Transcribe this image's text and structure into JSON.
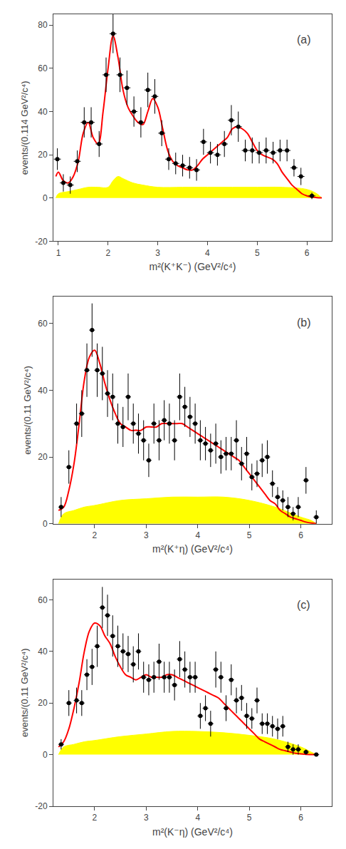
{
  "chart_data": [
    {
      "type": "line",
      "annotations": [
        "(a)"
      ],
      "xlabel": "m²(K⁺K⁻) (GeV²/c⁴)",
      "ylabel": "events/(0.114 GeV²/c⁴)",
      "xlim": [
        0.9,
        6.5
      ],
      "ylim": [
        -20,
        85
      ],
      "yticks": [
        -20,
        0,
        20,
        40,
        60,
        80
      ],
      "xticks": [
        1,
        2,
        3,
        4,
        5,
        6
      ],
      "grid": false,
      "series": [
        {
          "type": "area",
          "color": "#ffff00",
          "line_style": "solid",
          "x": [
            0.95,
            1.0,
            1.2,
            1.4,
            1.6,
            1.8,
            2.0,
            2.1,
            2.2,
            2.3,
            2.5,
            2.7,
            3.0,
            3.5,
            4.0,
            4.5,
            5.0,
            5.5,
            6.0,
            6.2,
            6.3
          ],
          "values": [
            0,
            2,
            3,
            4,
            5,
            5,
            5,
            8,
            10,
            9,
            7,
            6,
            5,
            5,
            5,
            5,
            5,
            5,
            4,
            2,
            0
          ]
        },
        {
          "type": "line",
          "color": "#ff0000",
          "line_style": "solid",
          "x": [
            0.95,
            1.0,
            1.1,
            1.2,
            1.3,
            1.4,
            1.5,
            1.6,
            1.7,
            1.8,
            1.9,
            2.0,
            2.1,
            2.2,
            2.3,
            2.4,
            2.5,
            2.6,
            2.7,
            2.8,
            2.9,
            3.0,
            3.1,
            3.2,
            3.3,
            3.4,
            3.5,
            3.6,
            3.7,
            3.8,
            3.9,
            4.0,
            4.1,
            4.2,
            4.3,
            4.4,
            4.5,
            4.6,
            4.7,
            4.8,
            4.9,
            5.0,
            5.1,
            5.2,
            5.3,
            5.4,
            5.5,
            5.6,
            5.7,
            5.8,
            5.9,
            6.0,
            6.1,
            6.2,
            6.3
          ],
          "values": [
            10,
            12,
            8,
            7,
            10,
            17,
            30,
            35,
            28,
            25,
            40,
            60,
            75,
            65,
            50,
            42,
            38,
            35,
            34,
            40,
            46,
            42,
            32,
            22,
            17,
            15,
            14,
            13,
            13,
            15,
            18,
            20,
            22,
            24,
            26,
            28,
            32,
            33,
            32,
            30,
            26,
            22,
            20,
            19,
            18,
            16,
            12,
            9,
            6,
            4,
            2,
            1,
            0.5,
            0.2,
            0.1
          ]
        },
        {
          "type": "scatter",
          "color": "#000000",
          "marker": "circle",
          "x": [
            0.98,
            1.1,
            1.24,
            1.38,
            1.52,
            1.66,
            1.82,
            1.96,
            2.1,
            2.24,
            2.38,
            2.52,
            2.66,
            2.8,
            2.94,
            3.08,
            3.22,
            3.36,
            3.5,
            3.64,
            3.78,
            3.92,
            4.06,
            4.2,
            4.34,
            4.48,
            4.62,
            4.76,
            4.9,
            5.04,
            5.18,
            5.32,
            5.46,
            5.6,
            5.74,
            5.88,
            6.1
          ],
          "values": [
            18,
            7,
            6,
            17,
            35,
            35,
            25,
            57,
            76,
            57,
            51,
            40,
            35,
            50,
            47,
            30,
            18,
            16,
            15,
            14,
            13,
            26,
            21,
            20,
            25,
            36,
            33,
            22,
            22,
            21,
            22,
            21,
            22,
            22,
            14,
            10,
            1
          ],
          "yerr": [
            5,
            4,
            4,
            5,
            7,
            7,
            6,
            8,
            9,
            8,
            8,
            7,
            7,
            8,
            8,
            6,
            5,
            5,
            5,
            5,
            5,
            6,
            5,
            5,
            6,
            7,
            7,
            5,
            6,
            5,
            6,
            5,
            5,
            5,
            4,
            4,
            1.5
          ],
          "xerr": 0.07
        }
      ]
    },
    {
      "type": "line",
      "annotations": [
        "(b)"
      ],
      "xlabel": "m²(K⁺η) (GeV²/c⁴)",
      "ylabel": "events/(0.11 GeV²/c⁴)",
      "xlim": [
        1.2,
        6.6
      ],
      "ylim": [
        0,
        68
      ],
      "yticks": [
        0,
        20,
        40,
        60
      ],
      "xticks": [
        2,
        3,
        4,
        5,
        6
      ],
      "grid": false,
      "series": [
        {
          "type": "area",
          "color": "#ffff00",
          "line_style": "solid",
          "x": [
            1.3,
            1.4,
            1.6,
            1.8,
            2.0,
            2.5,
            3.0,
            3.5,
            4.0,
            4.5,
            5.0,
            5.5,
            6.0,
            6.2,
            6.3
          ],
          "values": [
            0,
            3,
            4,
            5,
            5.5,
            7,
            7.5,
            8,
            8,
            8,
            7,
            5,
            2,
            1,
            0
          ]
        },
        {
          "type": "line",
          "color": "#ff0000",
          "line_style": "solid",
          "x": [
            1.3,
            1.4,
            1.5,
            1.6,
            1.7,
            1.8,
            1.9,
            2.0,
            2.1,
            2.2,
            2.3,
            2.4,
            2.5,
            2.6,
            2.7,
            2.8,
            2.9,
            3.0,
            3.1,
            3.2,
            3.3,
            3.4,
            3.5,
            3.6,
            3.7,
            3.8,
            3.9,
            4.0,
            4.1,
            4.2,
            4.3,
            4.4,
            4.5,
            4.6,
            4.7,
            4.8,
            4.9,
            5.0,
            5.1,
            5.2,
            5.3,
            5.4,
            5.5,
            5.6,
            5.7,
            5.8,
            5.9,
            6.0,
            6.1,
            6.2,
            6.3
          ],
          "values": [
            4,
            5,
            10,
            18,
            30,
            43,
            50,
            52,
            48,
            42,
            37,
            33,
            30,
            29,
            28,
            28,
            28,
            29,
            29,
            29,
            30,
            30,
            30,
            30,
            30,
            29,
            28,
            27,
            26,
            25,
            24,
            23,
            22,
            21,
            20,
            19,
            17,
            15,
            13,
            11,
            9,
            7,
            6,
            4,
            3,
            2,
            1.5,
            1,
            0.5,
            0.2,
            0.05
          ]
        },
        {
          "type": "scatter",
          "color": "#000000",
          "marker": "circle",
          "x": [
            1.35,
            1.5,
            1.65,
            1.75,
            1.85,
            1.95,
            2.05,
            2.15,
            2.25,
            2.35,
            2.45,
            2.55,
            2.65,
            2.75,
            2.85,
            2.95,
            3.05,
            3.15,
            3.25,
            3.35,
            3.45,
            3.55,
            3.65,
            3.75,
            3.85,
            3.95,
            4.05,
            4.15,
            4.25,
            4.35,
            4.45,
            4.55,
            4.65,
            4.75,
            4.85,
            4.95,
            5.05,
            5.15,
            5.25,
            5.35,
            5.45,
            5.55,
            5.65,
            5.75,
            5.85,
            5.95,
            6.1,
            6.3
          ],
          "values": [
            5,
            17,
            30,
            33,
            46,
            58,
            46,
            45,
            39,
            38,
            30,
            29,
            38,
            30,
            27,
            25,
            19,
            30,
            25,
            31,
            30,
            25,
            38,
            35,
            32,
            30,
            25,
            24,
            22,
            24,
            20,
            21,
            21,
            25,
            18,
            21,
            14,
            15,
            19,
            20,
            12,
            8,
            7,
            5,
            3,
            5,
            13,
            2
          ],
          "yerr": [
            3,
            5,
            6,
            7,
            8,
            8,
            8,
            8,
            7,
            7,
            6,
            6,
            7,
            6,
            6,
            6,
            5,
            6,
            6,
            6,
            6,
            6,
            7,
            6,
            6,
            6,
            6,
            5,
            5,
            6,
            5,
            5,
            5,
            6,
            5,
            5,
            4,
            4,
            5,
            5,
            4,
            3,
            3,
            3,
            2,
            3,
            4,
            2
          ],
          "xerr": 0.055
        }
      ]
    },
    {
      "type": "line",
      "annotations": [
        "(c)"
      ],
      "xlabel": "m²(K⁻η) (GeV²/c⁴)",
      "ylabel": "events/(0.11 GeV²/c⁴)",
      "xlim": [
        1.2,
        6.6
      ],
      "ylim": [
        -20,
        68
      ],
      "yticks": [
        -20,
        0,
        20,
        40,
        60
      ],
      "xticks": [
        2,
        3,
        4,
        5,
        6
      ],
      "grid": false,
      "series": [
        {
          "type": "area",
          "color": "#ffff00",
          "line_style": "solid",
          "x": [
            1.3,
            1.4,
            1.6,
            1.8,
            2.0,
            2.5,
            3.0,
            3.5,
            4.0,
            4.5,
            5.0,
            5.5,
            6.0,
            6.2,
            6.3
          ],
          "values": [
            0,
            3,
            4,
            5,
            5.5,
            7,
            8,
            9,
            9,
            8.5,
            7.5,
            6,
            3,
            1,
            0
          ]
        },
        {
          "type": "line",
          "color": "#ff0000",
          "line_style": "solid",
          "x": [
            1.3,
            1.4,
            1.5,
            1.6,
            1.7,
            1.8,
            1.9,
            2.0,
            2.1,
            2.2,
            2.3,
            2.4,
            2.5,
            2.6,
            2.7,
            2.8,
            2.9,
            3.0,
            3.1,
            3.2,
            3.3,
            3.4,
            3.5,
            3.6,
            3.7,
            3.8,
            3.9,
            4.0,
            4.1,
            4.2,
            4.3,
            4.4,
            4.5,
            4.6,
            4.7,
            4.8,
            4.9,
            5.0,
            5.1,
            5.2,
            5.3,
            5.4,
            5.5,
            5.6,
            5.7,
            5.8,
            5.9,
            6.0,
            6.1,
            6.2,
            6.3
          ],
          "values": [
            3,
            5,
            10,
            18,
            28,
            40,
            48,
            51,
            50,
            46,
            43,
            38,
            34,
            31,
            30,
            29,
            30,
            31,
            30,
            30,
            30,
            31,
            31,
            30,
            29,
            28,
            27,
            26,
            25,
            24,
            23,
            22,
            20,
            18,
            16,
            14,
            12,
            10,
            8,
            6,
            5,
            4,
            3,
            2,
            1.5,
            1,
            0.5,
            0.3,
            0.1,
            0.05,
            0.02
          ]
        },
        {
          "type": "scatter",
          "color": "#000000",
          "marker": "circle",
          "x": [
            1.35,
            1.5,
            1.65,
            1.75,
            1.85,
            1.95,
            2.05,
            2.15,
            2.25,
            2.35,
            2.45,
            2.55,
            2.65,
            2.75,
            2.85,
            2.95,
            3.05,
            3.15,
            3.25,
            3.35,
            3.45,
            3.55,
            3.65,
            3.75,
            3.85,
            3.95,
            4.05,
            4.15,
            4.25,
            4.35,
            4.45,
            4.55,
            4.65,
            4.75,
            4.85,
            4.95,
            5.05,
            5.15,
            5.25,
            5.35,
            5.45,
            5.55,
            5.65,
            5.75,
            5.85,
            5.95,
            6.1,
            6.3
          ],
          "values": [
            4,
            20,
            21,
            20,
            31,
            34,
            42,
            57,
            54,
            46,
            42,
            40,
            39,
            35,
            40,
            30,
            29,
            30,
            36,
            30,
            30,
            27,
            37,
            33,
            30,
            30,
            15,
            18,
            12,
            33,
            30,
            18,
            29,
            21,
            22,
            15,
            14,
            21,
            12,
            12,
            11,
            10,
            11,
            3,
            2,
            2,
            1,
            0
          ],
          "yerr": [
            2,
            5,
            5,
            5,
            6,
            7,
            8,
            8,
            8,
            8,
            8,
            7,
            7,
            7,
            7,
            6,
            6,
            6,
            7,
            6,
            6,
            6,
            7,
            7,
            6,
            6,
            5,
            5,
            5,
            7,
            6,
            5,
            6,
            5,
            5,
            5,
            4,
            5,
            4,
            4,
            4,
            4,
            4,
            2,
            2,
            2,
            1,
            0.5
          ],
          "xerr": 0.055
        }
      ]
    }
  ]
}
